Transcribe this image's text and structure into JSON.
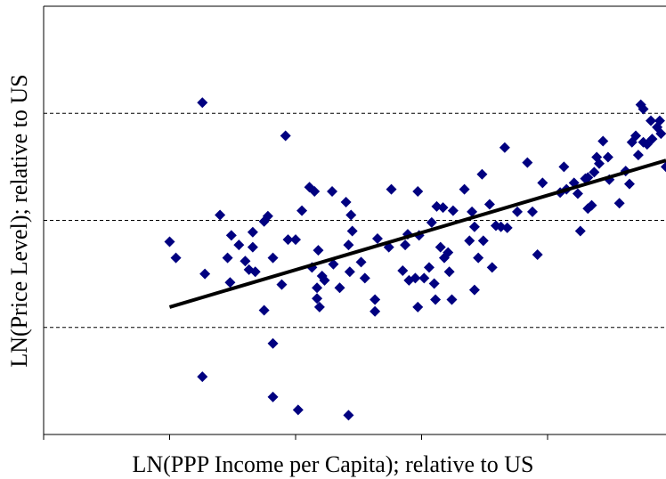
{
  "chart_data": {
    "type": "scatter",
    "x_label": "LN(PPP Income per Capita); relative to US",
    "y_label": "LN(Price Level); relative to US",
    "xlim": [
      0,
      4.94
    ],
    "xticks": [
      0,
      1,
      2,
      3,
      4
    ],
    "ylim": [
      0,
      4
    ],
    "yticks": [
      1,
      2,
      3
    ],
    "grid": true,
    "points": {
      "color": "#000080",
      "x": [
        1.0,
        1.05,
        1.26,
        1.28,
        1.26,
        1.4,
        1.46,
        1.49,
        1.55,
        1.48,
        1.6,
        1.63,
        1.66,
        1.66,
        1.68,
        1.75,
        1.78,
        1.75,
        1.82,
        1.82,
        1.82,
        1.89,
        1.92,
        1.94,
        2.0,
        2.05,
        2.02,
        2.11,
        2.15,
        2.18,
        2.13,
        2.17,
        2.17,
        2.19,
        2.21,
        2.23,
        2.29,
        2.3,
        2.35,
        2.4,
        2.42,
        2.43,
        2.45,
        2.44,
        2.42,
        2.52,
        2.55,
        2.65,
        2.63,
        2.63,
        2.74,
        2.76,
        2.85,
        2.87,
        2.9,
        2.89,
        2.95,
        2.97,
        2.98,
        2.97,
        3.02,
        3.06,
        3.08,
        3.1,
        3.11,
        3.12,
        3.17,
        3.15,
        3.18,
        3.22,
        3.21,
        3.25,
        3.24,
        3.34,
        3.38,
        3.4,
        3.42,
        3.42,
        3.45,
        3.49,
        3.48,
        3.54,
        3.56,
        3.59,
        3.63,
        3.66,
        3.68,
        3.76,
        3.84,
        3.88,
        3.92,
        3.96,
        4.1,
        4.13,
        4.15,
        4.21,
        4.24,
        4.26,
        4.3,
        4.32,
        4.32,
        4.35,
        4.37,
        4.39,
        4.41,
        4.44,
        4.48,
        4.49,
        4.57,
        4.62,
        4.65,
        4.67,
        4.7,
        4.72,
        4.74,
        4.76,
        4.76,
        4.79,
        4.82,
        4.83,
        4.87,
        4.89,
        4.9,
        4.94
      ],
      "y": [
        1.8,
        1.65,
        3.1,
        1.5,
        0.54,
        2.05,
        1.65,
        1.86,
        1.77,
        1.42,
        1.62,
        1.54,
        1.89,
        1.75,
        1.52,
        1.99,
        2.04,
        1.16,
        1.65,
        0.85,
        0.35,
        1.4,
        2.79,
        1.82,
        1.82,
        2.09,
        0.23,
        2.31,
        2.27,
        1.72,
        1.56,
        1.37,
        1.27,
        1.19,
        1.48,
        1.44,
        2.27,
        1.59,
        1.37,
        2.17,
        1.77,
        1.52,
        1.9,
        2.05,
        0.18,
        1.61,
        1.46,
        1.83,
        1.26,
        1.15,
        1.75,
        2.29,
        1.53,
        1.77,
        1.44,
        1.87,
        1.46,
        2.27,
        1.86,
        1.19,
        1.46,
        1.56,
        1.98,
        1.41,
        1.26,
        2.13,
        2.12,
        1.75,
        1.65,
        1.52,
        1.7,
        2.09,
        1.26,
        2.29,
        1.81,
        2.08,
        1.94,
        1.35,
        1.65,
        1.81,
        2.43,
        2.15,
        1.56,
        1.95,
        1.94,
        2.68,
        1.93,
        2.08,
        2.54,
        2.08,
        1.68,
        2.35,
        2.26,
        2.5,
        2.29,
        2.35,
        2.25,
        1.9,
        2.39,
        2.4,
        2.11,
        2.14,
        2.45,
        2.59,
        2.53,
        2.74,
        2.59,
        2.38,
        2.16,
        2.46,
        2.34,
        2.73,
        2.79,
        2.61,
        3.08,
        3.04,
        2.73,
        2.71,
        2.93,
        2.76,
        2.87,
        2.93,
        2.81,
        2.5
      ]
    },
    "trend_line": {
      "color": "#000000",
      "x": [
        1.0,
        4.94
      ],
      "y": [
        1.19,
        2.56
      ]
    }
  }
}
